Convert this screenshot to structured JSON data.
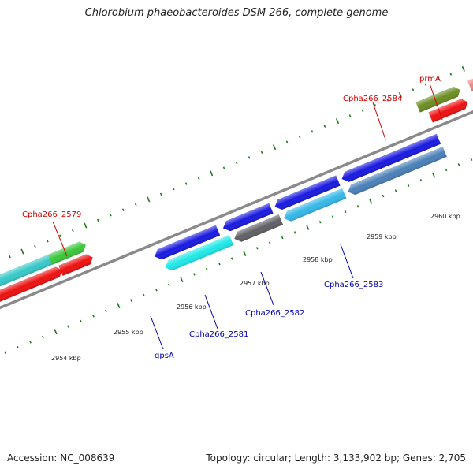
{
  "title": "Chlorobium phaeobacteroides DSM 266, complete genome",
  "footer": {
    "accession": "Accession: NC_008639",
    "summary": "Topology: circular; Length: 3,133,902 bp; Genes: 2,705"
  },
  "colors": {
    "backbone": "#8a8a8a",
    "tick": "#1e7a1e",
    "forward_label": "#d40000",
    "reverse_label": "#0000b0"
  },
  "ticks": [
    {
      "label": "2954 kbp"
    },
    {
      "label": "2955 kbp"
    },
    {
      "label": "2956 kbp"
    },
    {
      "label": "2957 kbp"
    },
    {
      "label": "2958 kbp"
    },
    {
      "label": "2959 kbp"
    },
    {
      "label": "2960 kbp"
    }
  ],
  "labels": {
    "cpha2579": "Cpha266_2579",
    "cpha2584": "Cpha266_2584",
    "prmA": "prmA",
    "gpsA": "gpsA",
    "cpha2581": "Cpha266_2581",
    "cpha2582": "Cpha266_2582",
    "cpha2583": "Cpha266_2583"
  }
}
